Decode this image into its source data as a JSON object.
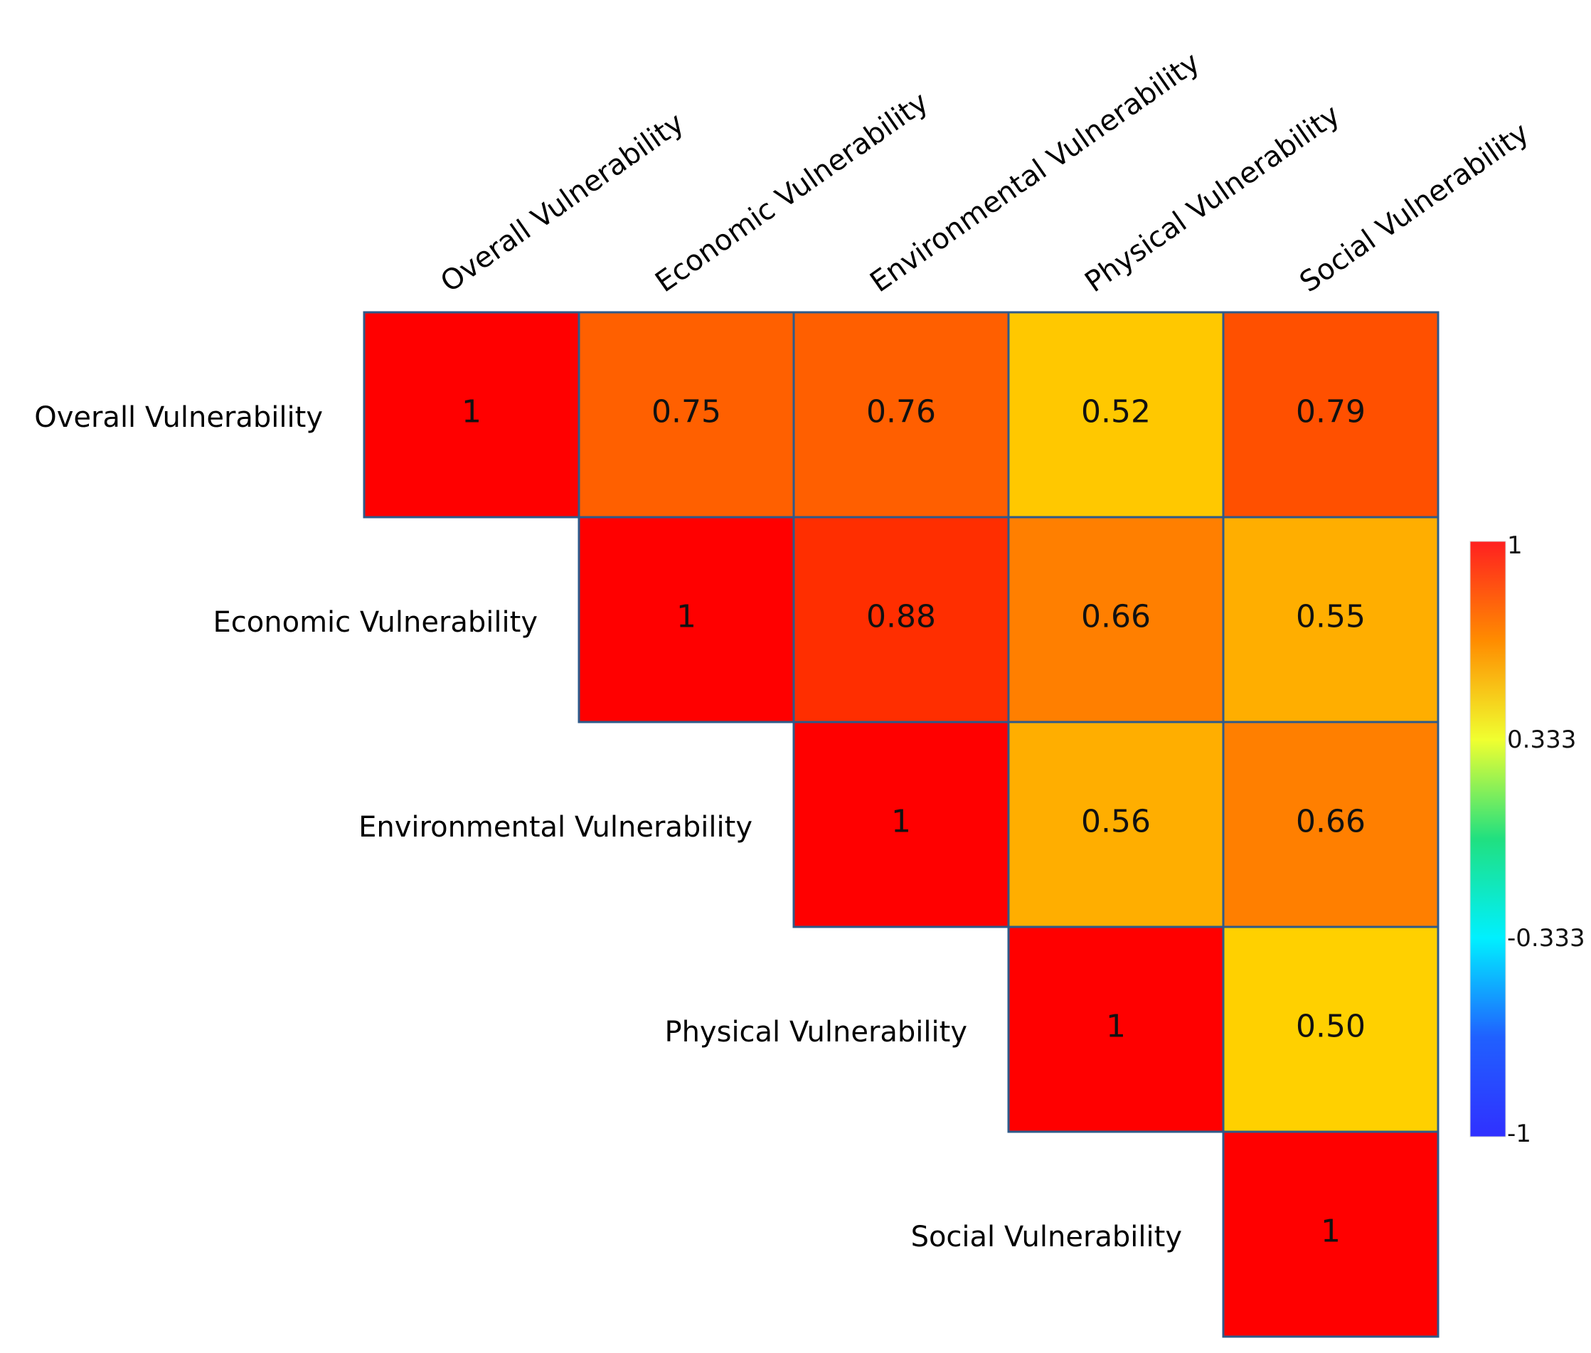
{
  "chart_data": {
    "type": "heatmap",
    "title": "",
    "variables": [
      "Overall Vulnerability",
      "Economic Vulnerability",
      "Environmental Vulnerability",
      "Physical Vulnerability",
      "Social Vulnerability"
    ],
    "layout": "upper-triangle",
    "cells": [
      {
        "row": 0,
        "col": 0,
        "value": 1,
        "label": "1",
        "color": "#ff0000"
      },
      {
        "row": 0,
        "col": 1,
        "value": 0.75,
        "label": "0.75",
        "color": "#ff6000"
      },
      {
        "row": 0,
        "col": 2,
        "value": 0.76,
        "label": "0.76",
        "color": "#ff5f00"
      },
      {
        "row": 0,
        "col": 3,
        "value": 0.52,
        "label": "0.52",
        "color": "#ffc800"
      },
      {
        "row": 0,
        "col": 4,
        "value": 0.79,
        "label": "0.79",
        "color": "#ff5000"
      },
      {
        "row": 1,
        "col": 1,
        "value": 1,
        "label": "1",
        "color": "#ff0000"
      },
      {
        "row": 1,
        "col": 2,
        "value": 0.88,
        "label": "0.88",
        "color": "#ff2e00"
      },
      {
        "row": 1,
        "col": 3,
        "value": 0.66,
        "label": "0.66",
        "color": "#ff7f00"
      },
      {
        "row": 1,
        "col": 4,
        "value": 0.55,
        "label": "0.55",
        "color": "#ffae00"
      },
      {
        "row": 2,
        "col": 2,
        "value": 1,
        "label": "1",
        "color": "#ff0000"
      },
      {
        "row": 2,
        "col": 3,
        "value": 0.56,
        "label": "0.56",
        "color": "#ffae00"
      },
      {
        "row": 2,
        "col": 4,
        "value": 0.66,
        "label": "0.66",
        "color": "#ff7f00"
      },
      {
        "row": 3,
        "col": 3,
        "value": 1,
        "label": "1",
        "color": "#ff0000"
      },
      {
        "row": 3,
        "col": 4,
        "value": 0.5,
        "label": "0.50",
        "color": "#ffd000"
      },
      {
        "row": 4,
        "col": 4,
        "value": 1,
        "label": "1",
        "color": "#ff0000"
      }
    ],
    "colorbar": {
      "range": [
        -1,
        1
      ],
      "ticks": [
        "1",
        "0.333",
        "-0.333",
        "-1"
      ],
      "tick_values": [
        1,
        0.333,
        -0.333,
        -1
      ],
      "colors": [
        "#ff2020",
        "#ff8c00",
        "#f0ff30",
        "#20e080",
        "#00f0ff",
        "#2060ff",
        "#3030ff"
      ],
      "placement": "right"
    },
    "cell_border_color": "#2e5a8a"
  }
}
